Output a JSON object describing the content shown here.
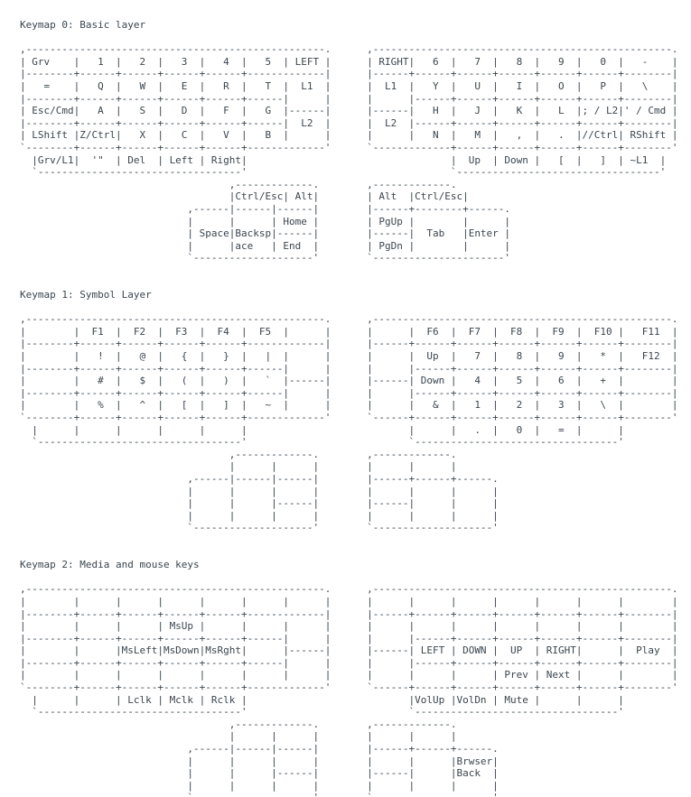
{
  "page": {
    "background_color": "#ffffff",
    "text_color": "#3b454e"
  },
  "sections": [
    {
      "id": "keymap-0",
      "title": "Keymap 0: Basic layer",
      "lines": [
        ",--------------------------------------------------.      ,--------------------------------------------------.",
        "| Grv    |   1  |   2  |   3  |   4  |   5  | LEFT |      | RIGHT|   6  |   7  |   8  |   9  |   0  |   -    |",
        "|--------+------+------+------+------+-------------|      |------+------+------+------+------+------+--------|",
        "|   =    |   Q  |   W  |   E  |   R  |   T  |  L1  |      |  L1  |   Y  |   U  |   I  |   O  |   P  |   \\    |",
        "|--------+------+------+------+------+------|      |      |      |------+------+------+------+------+--------|",
        "| Esc/Cmd|   A  |   S  |   D  |   F  |   G  |------|      |------|   H  |   J  |   K  |   L  |; / L2|' / Cmd |",
        "|--------+------+------+------+------+------|  L2  |      |  L2  |------+------+------+------+------+--------|",
        "| LShift |Z/Ctrl|   X  |   C  |   V  |   B  |      |      |      |   N  |   M  |   ,  |   .  |//Ctrl| RShift |",
        "`--------+------+------+------+------+-------------'      `-------------+------+------+------+------+--------'",
        "  |Grv/L1|  '\"  | Del  | Left | Right|                                  |  Up  | Down |   [  |   ]  | ~L1  |",
        "  `----------------------------------'                                  `----------------------------------'",
        "                                   ,-------------.        ,-------------.",
        "                                   |Ctrl/Esc| Alt|        | Alt  |Ctrl/Esc|",
        "                            ,------|------|------|        |------+--------+------.",
        "                            |      |      | Home |        | PgUp |        |      |",
        "                            | Space|Backsp|------|        |------|  Tab   |Enter |",
        "                            |      |ace   | End  |        | PgDn |        |      |",
        "                            `--------------------'        `----------------------'"
      ]
    },
    {
      "id": "keymap-1",
      "title": "Keymap 1: Symbol Layer",
      "lines": [
        ",--------------------------------------------------.      ,--------------------------------------------------.",
        "|        |  F1  |  F2  |  F3  |  F4  |  F5  |      |      |      |  F6  |  F7  |  F8  |  F9  |  F10 |   F11  |",
        "|--------+------+------+------+------+-------------|      |------+------+------+------+------+------+--------|",
        "|        |   !  |   @  |   {  |   }  |   |  |      |      |      |  Up  |   7  |   8  |   9  |   *  |   F12  |",
        "|--------+------+------+------+------+------|      |      |      |------+------+------+------+------+--------|",
        "|        |   #  |   $  |   (  |   )  |   `  |------|      |------| Down |   4  |   5  |   6  |   +  |        |",
        "|--------+------+------+------+------+------|      |      |      |------+------+------+------+------+--------|",
        "|        |   %  |   ^  |   [  |   ]  |   ~  |      |      |      |   &  |   1  |   2  |   3  |   \\  |        |",
        "`--------+------+------+------+------+-------------'      `------+------+------+------+------+------+--------'",
        "  |      |      |      |      |      |                           |      |   .  |   0  |   =  |      |",
        "  `----------------------------------'                           `----------------------------------'",
        "                                   ,-------------.        ,-------------.",
        "                                   |      |      |        |      |      |",
        "                            ,------|------|------|        |------+------+------.",
        "                            |      |      |      |        |      |      |      |",
        "                            |      |      |------|        |------|      |      |",
        "                            |      |      |      |        |      |      |      |",
        "                            `--------------------'        `--------------------'"
      ]
    },
    {
      "id": "keymap-2",
      "title": "Keymap 2: Media and mouse keys",
      "lines": [
        ",--------------------------------------------------.      ,--------------------------------------------------.",
        "|        |      |      |      |      |      |      |      |      |      |      |      |      |      |        |",
        "|--------+------+------+------+------+-------------|      |------+------+------+------+------+------+--------|",
        "|        |      |      | MsUp |      |      |      |      |      |      |      |      |      |      |        |",
        "|--------+------+------+------+------+------|      |      |      |------+------+------+------+------+--------|",
        "|        |      |MsLeft|MsDown|MsRght|      |------|      |------| LEFT | DOWN |  UP  | RIGHT|      |  Play  |",
        "|--------+------+------+------+------+------|      |      |      |------+------+------+------+------+--------|",
        "|        |      |      |      |      |      |      |      |      |      |      | Prev | Next |      |        |",
        "`--------+------+------+------+------+-------------'      `------+------+------+------+------+------+--------'",
        "  |      |      | Lclk | Mclk | Rclk |                           |VolUp |VolDn | Mute |      |      |",
        "  `----------------------------------'                           `----------------------------------'",
        "                                   ,-------------.        ,-------------.",
        "                                   |      |      |        |      |      |",
        "                            ,------|------|------|        |------+------+------.",
        "                            |      |      |      |        |      |      |Brwser|",
        "                            |      |      |------|        |------|      |Back  |",
        "                            |      |      |      |        |      |      |      |",
        "                            `--------------------'        `--------------------'"
      ]
    }
  ]
}
